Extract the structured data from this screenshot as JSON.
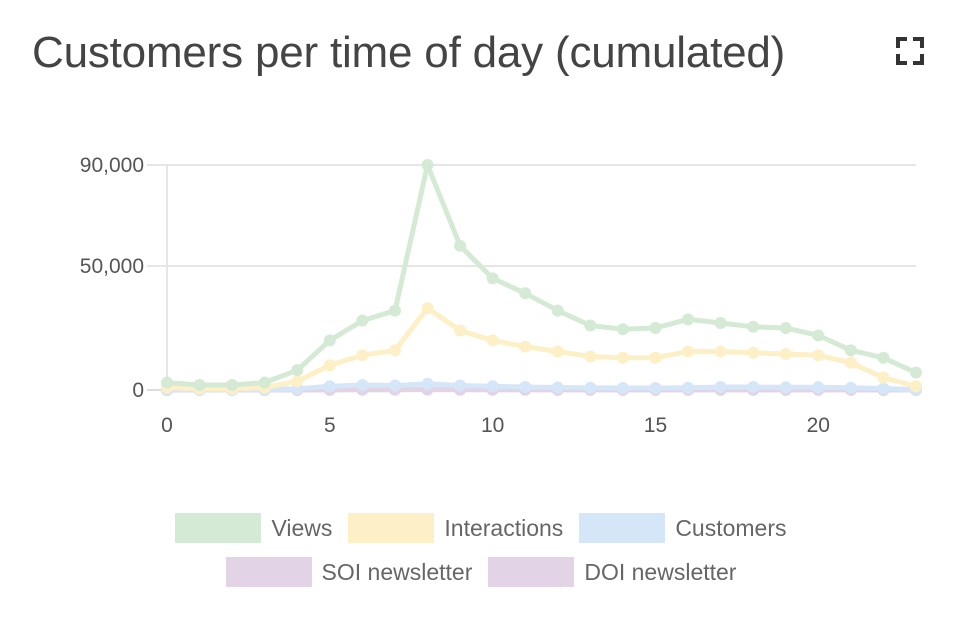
{
  "header": {
    "title": "Customers per time of day (cumulated)",
    "expand_icon": "expand-icon"
  },
  "chart_data": {
    "type": "line",
    "title": "Customers per time of day (cumulated)",
    "x": [
      0,
      1,
      2,
      3,
      4,
      5,
      6,
      7,
      8,
      9,
      10,
      11,
      12,
      13,
      14,
      15,
      16,
      17,
      18,
      19,
      20,
      21,
      22,
      23
    ],
    "xlim": [
      0,
      23
    ],
    "ylim": [
      0,
      90000
    ],
    "xticks": [
      0,
      5,
      10,
      15,
      20
    ],
    "yticks": [
      0,
      50000,
      90000
    ],
    "xtick_labels": [
      "0",
      "5",
      "10",
      "15",
      "20"
    ],
    "ytick_labels": [
      "0",
      "50,000",
      "90,000"
    ],
    "grid": true,
    "legend_position": "bottom",
    "series": [
      {
        "name": "Views",
        "color": "#d4ead4",
        "values": [
          3000,
          2000,
          2000,
          3000,
          8000,
          20000,
          28000,
          32000,
          90000,
          58000,
          45000,
          39000,
          32000,
          26000,
          24500,
          25000,
          28500,
          27000,
          25500,
          25000,
          22000,
          16000,
          13000,
          7000
        ]
      },
      {
        "name": "Interactions",
        "color": "#fdefc6",
        "values": [
          1000,
          500,
          500,
          1000,
          3500,
          10000,
          14000,
          16000,
          33000,
          24000,
          20000,
          17500,
          15500,
          13500,
          13000,
          13000,
          15500,
          15500,
          15000,
          14500,
          14000,
          11000,
          5000,
          1500
        ]
      },
      {
        "name": "Customers",
        "color": "#d6e6f9",
        "values": [
          200,
          100,
          100,
          200,
          500,
          1500,
          2000,
          1800,
          2500,
          1800,
          1500,
          1200,
          1000,
          900,
          800,
          800,
          900,
          1200,
          1200,
          1100,
          1100,
          900,
          600,
          200
        ]
      },
      {
        "name": "SOI newsletter",
        "color": "#e2d4e6",
        "values": [
          0,
          0,
          0,
          0,
          50,
          100,
          150,
          150,
          300,
          200,
          150,
          150,
          100,
          100,
          100,
          100,
          100,
          100,
          100,
          100,
          100,
          80,
          50,
          20
        ]
      },
      {
        "name": "DOI newsletter",
        "color": "#e2d4e6",
        "values": [
          0,
          0,
          0,
          0,
          20,
          50,
          80,
          80,
          150,
          100,
          80,
          80,
          50,
          50,
          50,
          50,
          50,
          50,
          50,
          50,
          50,
          40,
          20,
          10
        ]
      }
    ]
  }
}
